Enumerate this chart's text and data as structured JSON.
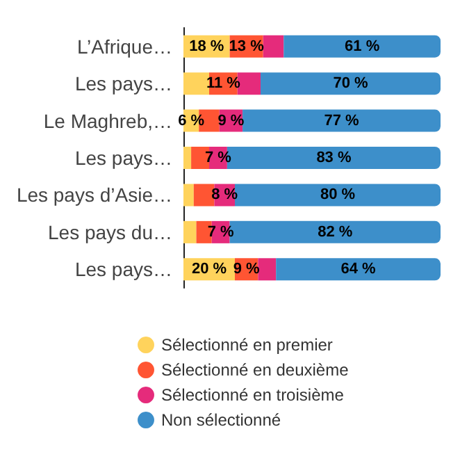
{
  "chart_data": {
    "type": "bar",
    "orientation": "horizontal",
    "stacked": true,
    "legend": "bottom",
    "marker": "circle",
    "grid": false,
    "tick_labels": "y",
    "categories": [
      "L’Afrique…",
      "Les pays…",
      "Le Maghreb,…",
      "Les pays…",
      "Les pays d’Asie…",
      "Les pays du…",
      "Les pays…"
    ],
    "series": [
      {
        "name": "Sélectionné en premier",
        "color": "#ffd35c",
        "values": [
          18,
          10,
          6,
          3,
          4,
          5,
          20
        ],
        "value_labels": [
          "18 %",
          null,
          "6 %",
          null,
          null,
          null,
          "20 %"
        ]
      },
      {
        "name": "Sélectionné en deuxième",
        "color": "#ff5533",
        "values": [
          13,
          11,
          8,
          7,
          8,
          6,
          9
        ],
        "value_labels": [
          "13 %",
          "11 %",
          null,
          null,
          null,
          null,
          "9 %"
        ]
      },
      {
        "name": "Sélectionné en troisième",
        "color": "#e52b7b",
        "values": [
          8,
          9,
          9,
          7,
          8,
          7,
          7
        ],
        "value_labels": [
          null,
          null,
          "9 %",
          "7 %",
          "8 %",
          "7 %",
          null
        ]
      },
      {
        "name": "Non sélectionné",
        "color": "#3d8fca",
        "values": [
          61,
          70,
          77,
          83,
          80,
          82,
          64
        ],
        "value_labels": [
          "61 %",
          "70 %",
          "77 %",
          "83 %",
          "80 %",
          "82 %",
          "64 %"
        ]
      }
    ]
  }
}
